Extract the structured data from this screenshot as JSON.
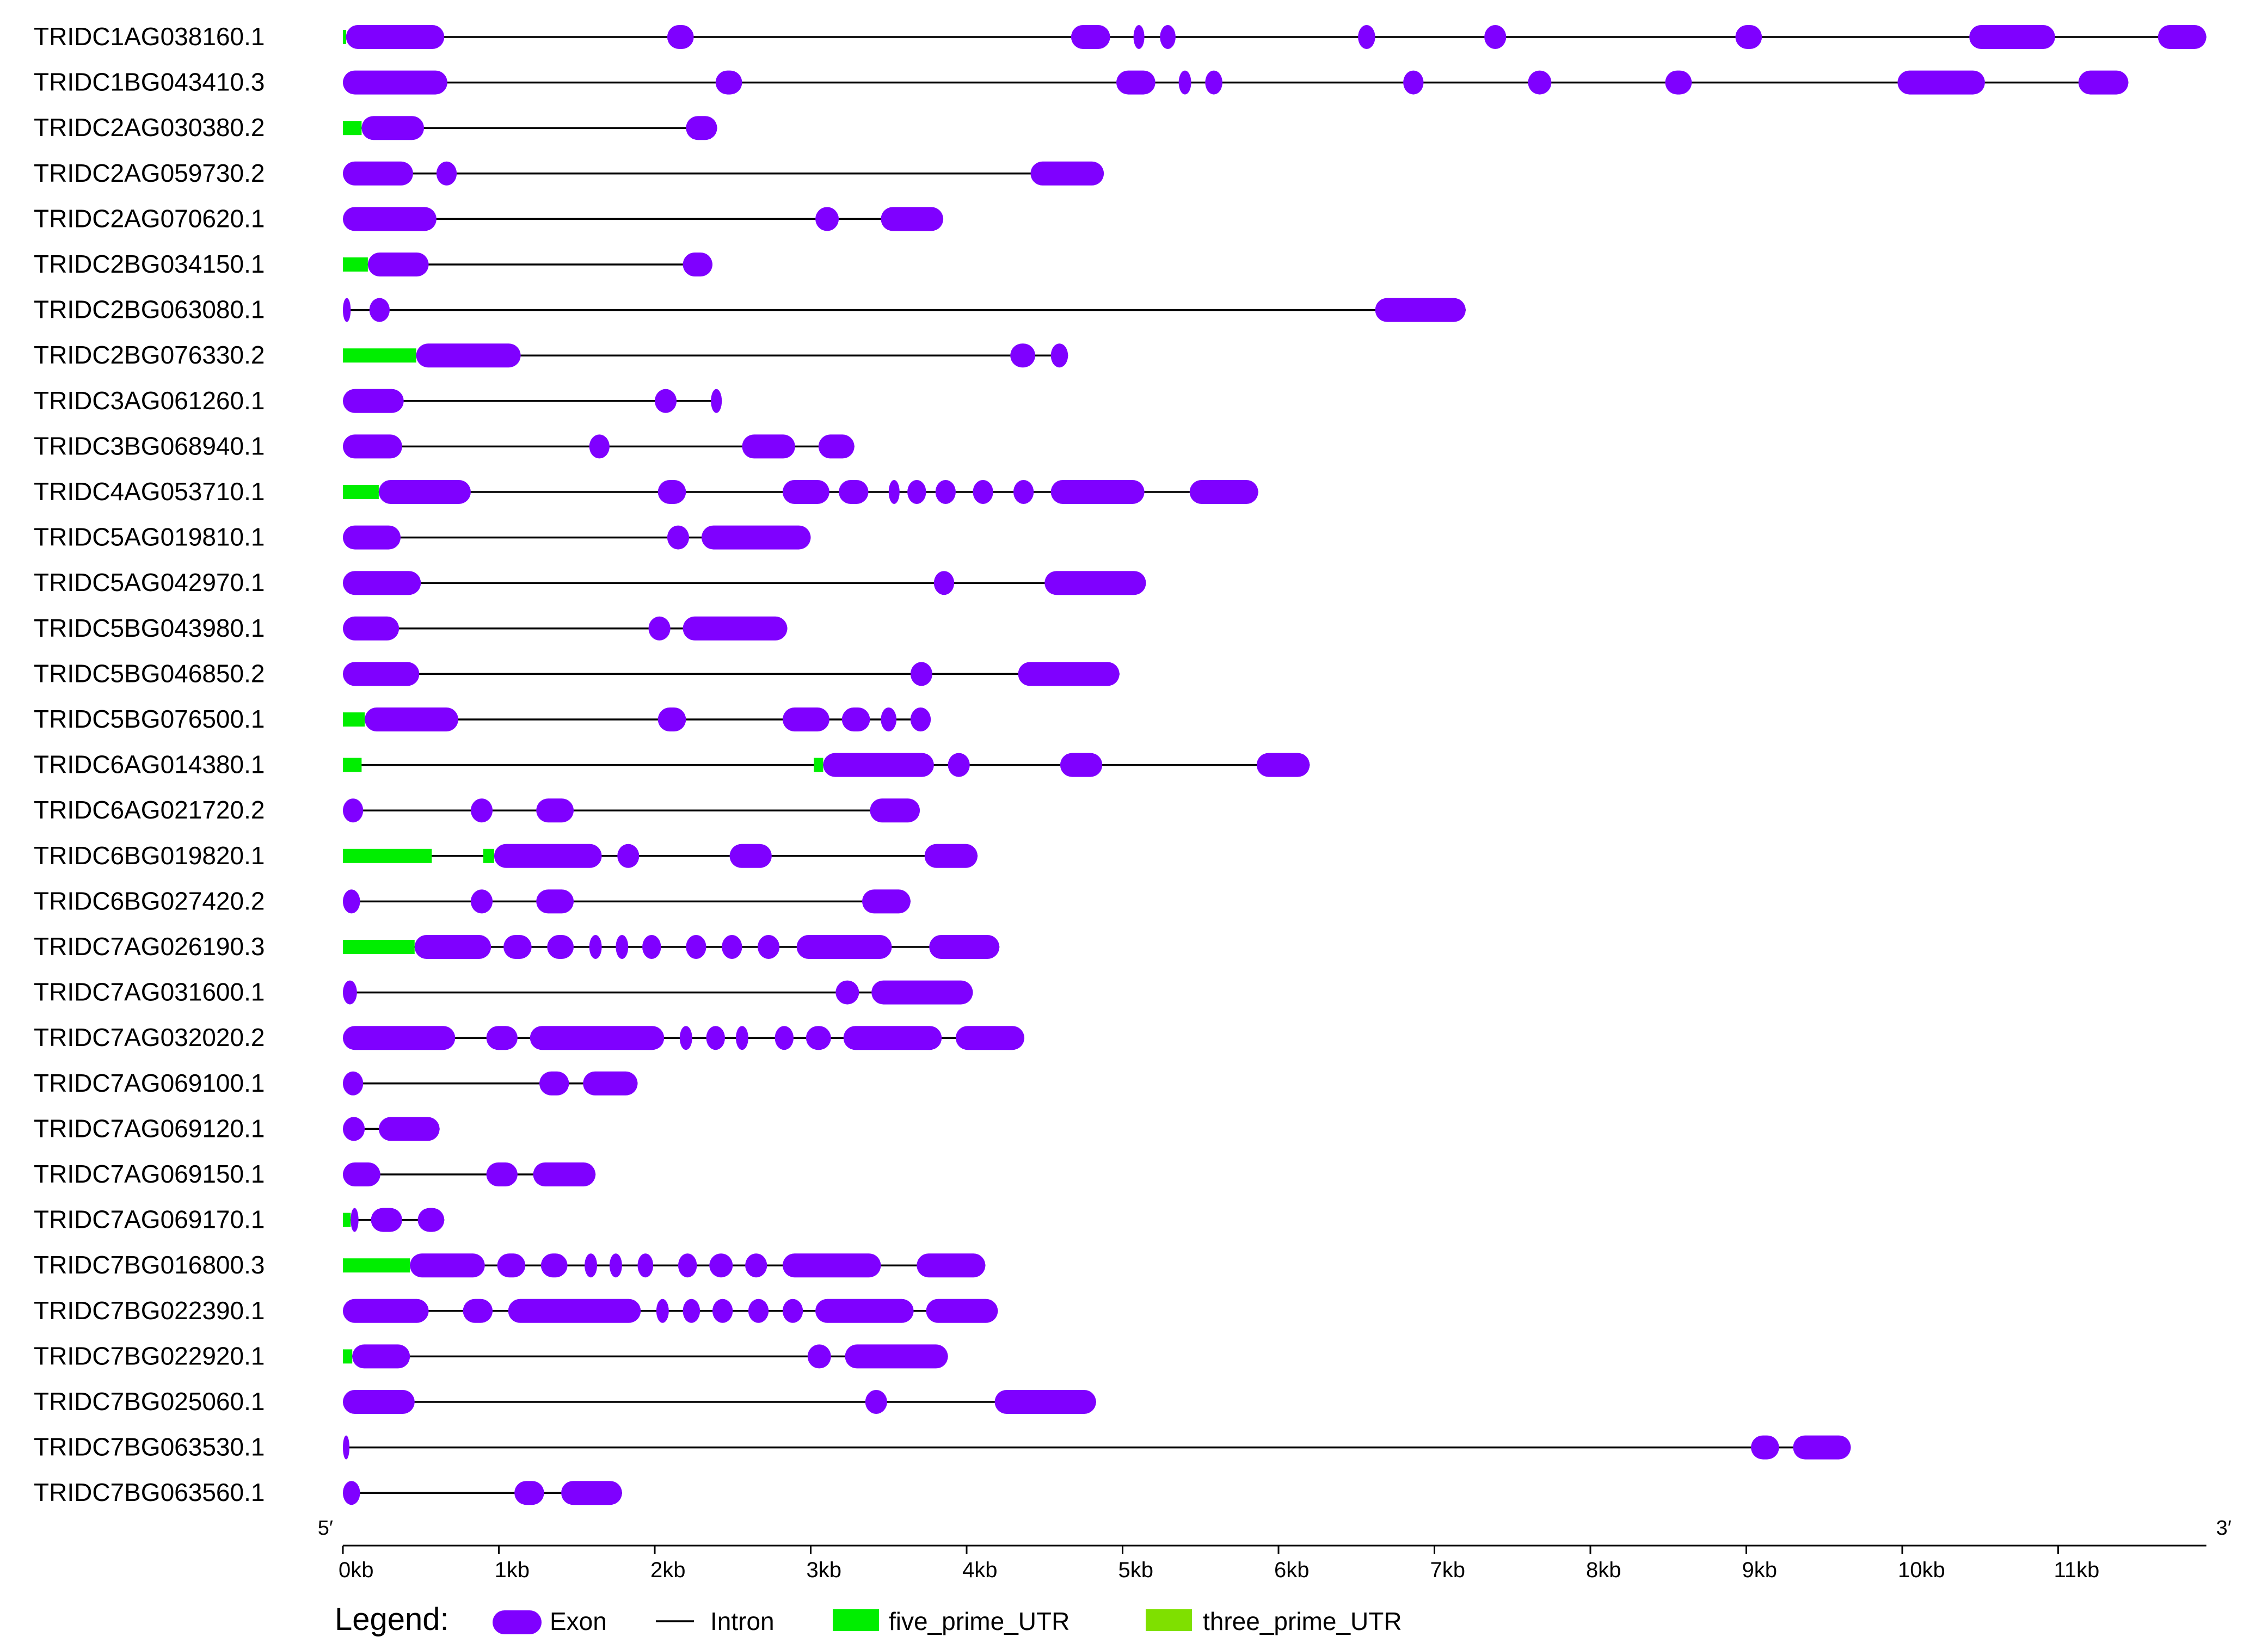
{
  "chart_data": {
    "type": "gene_structure",
    "x_unit": "kb",
    "x_range": [
      0,
      11.95
    ],
    "x_ticks": [
      "0kb",
      "1kb",
      "2kb",
      "3kb",
      "4kb",
      "5kb",
      "6kb",
      "7kb",
      "8kb",
      "9kb",
      "10kb",
      "11kb"
    ],
    "end_labels": {
      "left": "5′",
      "right": "3′"
    },
    "colors": {
      "exon": "#7F00FF",
      "intron": "#000000",
      "five_prime_UTR": "#00EE00",
      "three_prime_UTR": "#7FE000"
    },
    "legend": {
      "title": "Legend:",
      "items": [
        {
          "key": "exon",
          "label": "Exon"
        },
        {
          "key": "intron",
          "label": "Intron"
        },
        {
          "key": "five_prime_UTR",
          "label": "five_prime_UTR"
        },
        {
          "key": "three_prime_UTR",
          "label": "three_prime_UTR"
        }
      ]
    },
    "genes": [
      {
        "name": "TRIDC1AG038160.1",
        "length": 11.95,
        "utr5": [
          [
            0,
            0.02
          ]
        ],
        "exons": [
          [
            0.02,
            0.65
          ],
          [
            2.08,
            2.25
          ],
          [
            4.67,
            4.92
          ],
          [
            5.07,
            5.14
          ],
          [
            5.24,
            5.34
          ],
          [
            6.51,
            6.62
          ],
          [
            7.32,
            7.46
          ],
          [
            8.93,
            9.1
          ],
          [
            10.43,
            10.98
          ],
          [
            11.64,
            11.95
          ]
        ]
      },
      {
        "name": "TRIDC1BG043410.3",
        "length": 11.45,
        "utr5": [],
        "exons": [
          [
            0,
            0.67
          ],
          [
            2.39,
            2.56
          ],
          [
            4.96,
            5.21
          ],
          [
            5.36,
            5.44
          ],
          [
            5.53,
            5.64
          ],
          [
            6.8,
            6.93
          ],
          [
            7.6,
            7.75
          ],
          [
            8.48,
            8.65
          ],
          [
            9.97,
            10.53
          ],
          [
            11.13,
            11.45
          ]
        ]
      },
      {
        "name": "TRIDC2AG030380.2",
        "length": 2.4,
        "utr5": [
          [
            0,
            0.12
          ]
        ],
        "exons": [
          [
            0.12,
            0.52
          ],
          [
            2.2,
            2.4
          ]
        ]
      },
      {
        "name": "TRIDC2AG059730.2",
        "length": 4.88,
        "utr5": [],
        "exons": [
          [
            0,
            0.45
          ],
          [
            0.6,
            0.73
          ],
          [
            4.41,
            4.88
          ]
        ]
      },
      {
        "name": "TRIDC2AG070620.1",
        "length": 3.85,
        "utr5": [],
        "exons": [
          [
            0,
            0.6
          ],
          [
            3.03,
            3.18
          ],
          [
            3.45,
            3.85
          ]
        ]
      },
      {
        "name": "TRIDC2BG034150.1",
        "length": 2.37,
        "utr5": [
          [
            0,
            0.16
          ]
        ],
        "exons": [
          [
            0.16,
            0.55
          ],
          [
            2.18,
            2.37
          ]
        ]
      },
      {
        "name": "TRIDC2BG063080.1",
        "length": 7.2,
        "utr5": [],
        "exons": [
          [
            0,
            0.05
          ],
          [
            0.17,
            0.3
          ],
          [
            6.62,
            7.2
          ]
        ]
      },
      {
        "name": "TRIDC2BG076330.2",
        "length": 4.65,
        "utr5": [
          [
            0,
            0.47
          ]
        ],
        "exons": [
          [
            0.47,
            1.14
          ],
          [
            4.28,
            4.44
          ],
          [
            4.54,
            4.65
          ]
        ]
      },
      {
        "name": "TRIDC3AG061260.1",
        "length": 2.43,
        "utr5": [],
        "exons": [
          [
            0,
            0.39
          ],
          [
            2,
            2.14
          ],
          [
            2.36,
            2.43
          ]
        ]
      },
      {
        "name": "TRIDC3BG068940.1",
        "length": 3.28,
        "utr5": [],
        "exons": [
          [
            0,
            0.38
          ],
          [
            1.58,
            1.71
          ],
          [
            2.56,
            2.9
          ],
          [
            3.05,
            3.28
          ]
        ]
      },
      {
        "name": "TRIDC4AG053710.1",
        "length": 5.87,
        "utr5": [
          [
            0,
            0.23
          ]
        ],
        "exons": [
          [
            0.23,
            0.82
          ],
          [
            2.02,
            2.2
          ],
          [
            2.82,
            3.12
          ],
          [
            3.18,
            3.37
          ],
          [
            3.5,
            3.57
          ],
          [
            3.62,
            3.74
          ],
          [
            3.8,
            3.93
          ],
          [
            4.04,
            4.17
          ],
          [
            4.3,
            4.43
          ],
          [
            4.54,
            5.14
          ],
          [
            5.43,
            5.87
          ]
        ]
      },
      {
        "name": "TRIDC5AG019810.1",
        "length": 3.0,
        "utr5": [],
        "exons": [
          [
            0,
            0.37
          ],
          [
            2.08,
            2.22
          ],
          [
            2.3,
            3
          ]
        ]
      },
      {
        "name": "TRIDC5AG042970.1",
        "length": 5.15,
        "utr5": [],
        "exons": [
          [
            0,
            0.5
          ],
          [
            3.79,
            3.92
          ],
          [
            4.5,
            5.15
          ]
        ]
      },
      {
        "name": "TRIDC5BG043980.1",
        "length": 2.85,
        "utr5": [],
        "exons": [
          [
            0,
            0.36
          ],
          [
            1.96,
            2.1
          ],
          [
            2.18,
            2.85
          ]
        ]
      },
      {
        "name": "TRIDC5BG046850.2",
        "length": 4.98,
        "utr5": [],
        "exons": [
          [
            0,
            0.49
          ],
          [
            3.64,
            3.78
          ],
          [
            4.33,
            4.98
          ]
        ]
      },
      {
        "name": "TRIDC5BG076500.1",
        "length": 3.77,
        "utr5": [
          [
            0,
            0.14
          ]
        ],
        "exons": [
          [
            0.14,
            0.74
          ],
          [
            2.02,
            2.2
          ],
          [
            2.82,
            3.12
          ],
          [
            3.2,
            3.38
          ],
          [
            3.45,
            3.55
          ],
          [
            3.64,
            3.77
          ]
        ]
      },
      {
        "name": "TRIDC6AG014380.1",
        "length": 6.2,
        "utr5": [
          [
            0,
            0.12
          ],
          [
            3.02,
            3.08
          ]
        ],
        "exons": [
          [
            3.08,
            3.79
          ],
          [
            3.88,
            4.02
          ],
          [
            4.6,
            4.87
          ],
          [
            5.86,
            6.2
          ]
        ]
      },
      {
        "name": "TRIDC6AG021720.2",
        "length": 3.7,
        "utr5": [],
        "exons": [
          [
            0,
            0.13
          ],
          [
            0.82,
            0.96
          ],
          [
            1.24,
            1.48
          ],
          [
            3.38,
            3.7
          ]
        ]
      },
      {
        "name": "TRIDC6BG019820.1",
        "length": 4.07,
        "utr5": [
          [
            0,
            0.57
          ],
          [
            0.9,
            0.97
          ]
        ],
        "exons": [
          [
            0.97,
            1.66
          ],
          [
            1.76,
            1.9
          ],
          [
            2.48,
            2.75
          ],
          [
            3.73,
            4.07
          ]
        ]
      },
      {
        "name": "TRIDC6BG027420.2",
        "length": 3.64,
        "utr5": [],
        "exons": [
          [
            0,
            0.11
          ],
          [
            0.82,
            0.96
          ],
          [
            1.24,
            1.48
          ],
          [
            3.33,
            3.64
          ]
        ]
      },
      {
        "name": "TRIDC7AG026190.3",
        "length": 4.21,
        "utr5": [
          [
            0,
            0.46
          ]
        ],
        "exons": [
          [
            0.46,
            0.95
          ],
          [
            1.03,
            1.21
          ],
          [
            1.31,
            1.48
          ],
          [
            1.58,
            1.66
          ],
          [
            1.75,
            1.83
          ],
          [
            1.92,
            2.04
          ],
          [
            2.2,
            2.33
          ],
          [
            2.43,
            2.56
          ],
          [
            2.66,
            2.8
          ],
          [
            2.91,
            3.52
          ],
          [
            3.76,
            4.21
          ]
        ]
      },
      {
        "name": "TRIDC7AG031600.1",
        "length": 4.04,
        "utr5": [],
        "exons": [
          [
            0,
            0.09
          ],
          [
            3.16,
            3.31
          ],
          [
            3.39,
            4.04
          ]
        ]
      },
      {
        "name": "TRIDC7AG032020.2",
        "length": 4.37,
        "utr5": [],
        "exons": [
          [
            0,
            0.72
          ],
          [
            0.92,
            1.12
          ],
          [
            1.2,
            2.06
          ],
          [
            2.16,
            2.24
          ],
          [
            2.33,
            2.45
          ],
          [
            2.52,
            2.6
          ],
          [
            2.77,
            2.89
          ],
          [
            2.97,
            3.13
          ],
          [
            3.21,
            3.84
          ],
          [
            3.93,
            4.37
          ]
        ]
      },
      {
        "name": "TRIDC7AG069100.1",
        "length": 1.89,
        "utr5": [],
        "exons": [
          [
            0,
            0.13
          ],
          [
            1.26,
            1.45
          ],
          [
            1.54,
            1.89
          ]
        ]
      },
      {
        "name": "TRIDC7AG069120.1",
        "length": 0.62,
        "utr5": [],
        "exons": [
          [
            0,
            0.14
          ],
          [
            0.23,
            0.62
          ]
        ]
      },
      {
        "name": "TRIDC7AG069150.1",
        "length": 1.62,
        "utr5": [],
        "exons": [
          [
            0,
            0.24
          ],
          [
            0.92,
            1.12
          ],
          [
            1.22,
            1.62
          ]
        ]
      },
      {
        "name": "TRIDC7AG069170.1",
        "length": 0.65,
        "utr5": [
          [
            0,
            0.05
          ]
        ],
        "exons": [
          [
            0.05,
            0.1
          ],
          [
            0.18,
            0.38
          ],
          [
            0.48,
            0.65
          ]
        ]
      },
      {
        "name": "TRIDC7BG016800.3",
        "length": 4.12,
        "utr5": [
          [
            0,
            0.43
          ]
        ],
        "exons": [
          [
            0.43,
            0.91
          ],
          [
            0.99,
            1.17
          ],
          [
            1.27,
            1.44
          ],
          [
            1.55,
            1.63
          ],
          [
            1.71,
            1.79
          ],
          [
            1.89,
            1.99
          ],
          [
            2.15,
            2.27
          ],
          [
            2.35,
            2.5
          ],
          [
            2.58,
            2.72
          ],
          [
            2.82,
            3.45
          ],
          [
            3.68,
            4.12
          ]
        ]
      },
      {
        "name": "TRIDC7BG022390.1",
        "length": 4.2,
        "utr5": [],
        "exons": [
          [
            0,
            0.55
          ],
          [
            0.77,
            0.96
          ],
          [
            1.06,
            1.91
          ],
          [
            2.01,
            2.09
          ],
          [
            2.18,
            2.29
          ],
          [
            2.37,
            2.5
          ],
          [
            2.6,
            2.73
          ],
          [
            2.82,
            2.95
          ],
          [
            3.03,
            3.66
          ],
          [
            3.74,
            4.2
          ]
        ]
      },
      {
        "name": "TRIDC7BG022920.1",
        "length": 3.88,
        "utr5": [
          [
            0,
            0.06
          ]
        ],
        "exons": [
          [
            0.06,
            0.43
          ],
          [
            2.98,
            3.13
          ],
          [
            3.22,
            3.88
          ]
        ]
      },
      {
        "name": "TRIDC7BG025060.1",
        "length": 4.83,
        "utr5": [],
        "exons": [
          [
            0,
            0.46
          ],
          [
            3.35,
            3.49
          ],
          [
            4.18,
            4.83
          ]
        ]
      },
      {
        "name": "TRIDC7BG063530.1",
        "length": 9.67,
        "utr5": [],
        "exons": [
          [
            0,
            0.03
          ],
          [
            9.03,
            9.21
          ],
          [
            9.3,
            9.67
          ]
        ]
      },
      {
        "name": "TRIDC7BG063560.1",
        "length": 1.79,
        "utr5": [],
        "exons": [
          [
            0,
            0.11
          ],
          [
            1.1,
            1.29
          ],
          [
            1.4,
            1.79
          ]
        ]
      }
    ]
  }
}
